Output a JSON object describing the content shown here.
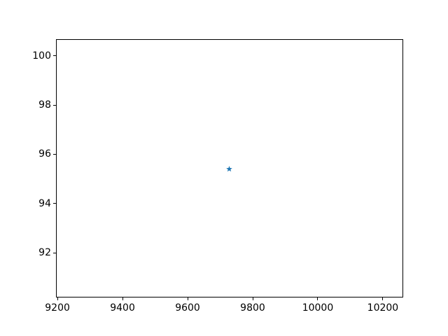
{
  "figure": {
    "background_color": "#ffffff",
    "frame_color": "#000000",
    "tick_color": "#000000",
    "tick_label_color": "#000000"
  },
  "chart_data": {
    "type": "scatter",
    "title": "",
    "xlabel": "",
    "ylabel": "",
    "grid": false,
    "legend": null,
    "marker": "star",
    "marker_color": "#1f77b4",
    "marker_size_px": 9,
    "points": [
      {
        "x": 9727,
        "y": 95.4
      }
    ],
    "xlim": [
      9195.5,
      10262.5
    ],
    "ylim": [
      90.18,
      100.68
    ],
    "x_ticks": [
      {
        "value": 9200,
        "label": "9200"
      },
      {
        "value": 9400,
        "label": "9400"
      },
      {
        "value": 9600,
        "label": "9600"
      },
      {
        "value": 9800,
        "label": "9800"
      },
      {
        "value": 10000,
        "label": "10000"
      },
      {
        "value": 10200,
        "label": "10200"
      }
    ],
    "y_ticks": [
      {
        "value": 92,
        "label": "92"
      },
      {
        "value": 94,
        "label": "94"
      },
      {
        "value": 96,
        "label": "96"
      },
      {
        "value": 98,
        "label": "98"
      },
      {
        "value": 100,
        "label": "100"
      }
    ]
  }
}
